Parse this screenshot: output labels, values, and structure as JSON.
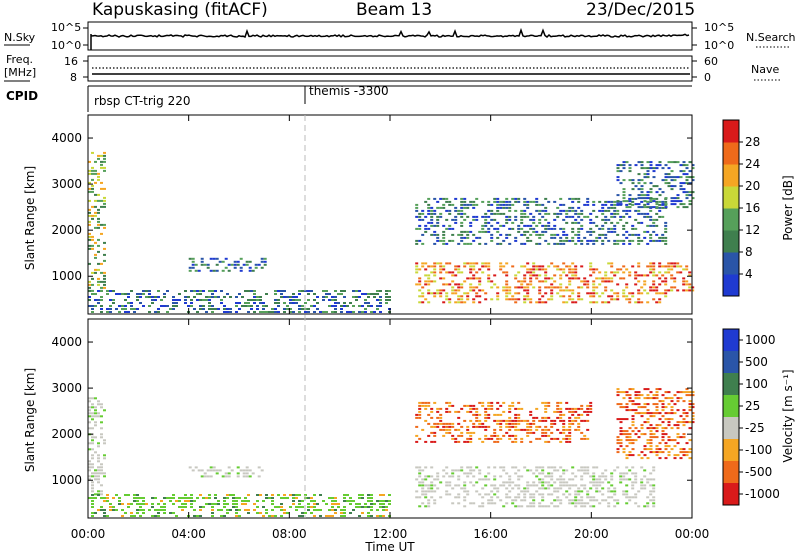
{
  "header": {
    "station": "Kapuskasing (fitACF)",
    "beam": "Beam 13",
    "date": "23/Dec/2015"
  },
  "noise_panel": {
    "left_label": "N.Sky",
    "right_label": "N.Search",
    "left_ticks": [
      "10^5",
      "10^0"
    ],
    "right_ticks": [
      "10^5",
      "10^0"
    ]
  },
  "freq_panel": {
    "left_label_top": "Freq.",
    "left_label_bottom": "[MHz]",
    "right_label": "Nave",
    "left_ticks": [
      "16",
      "8"
    ],
    "right_ticks": [
      "60",
      "0"
    ]
  },
  "cpid_panel": {
    "label": "CPID",
    "entries": [
      {
        "text": "rbsp CT-trig 220",
        "start": "00:00"
      },
      {
        "text": "themis -3300",
        "start": "08:45"
      }
    ]
  },
  "xaxis": {
    "label": "Time UT",
    "ticks": [
      "00:00",
      "04:00",
      "08:00",
      "12:00",
      "16:00",
      "20:00",
      "00:00"
    ]
  },
  "colors": {
    "power": [
      "#1f3ad1",
      "#2a55a8",
      "#3f7f4e",
      "#56a05a",
      "#c9d838",
      "#f5a623",
      "#ef6a1a",
      "#d91a1a"
    ],
    "velocity": [
      "#1f3ad1",
      "#2a55a8",
      "#3f7f4e",
      "#66cc33",
      "#c8c8c0",
      "#f5a623",
      "#ef6a1a",
      "#d91a1a"
    ],
    "noise_line": "#000000",
    "guide_line": "#bbbbbb"
  },
  "chart_data": [
    {
      "type": "heatmap",
      "panel": "power",
      "ylabel": "Slant Range [km]",
      "xlabel": "Time UT",
      "ylim": [
        180,
        4500
      ],
      "yticks": [
        1000,
        2000,
        3000,
        4000
      ],
      "xlim_hours": [
        0,
        24
      ],
      "colorbar": {
        "label": "Power [dB]",
        "range": [
          0,
          32
        ],
        "ticks": [
          "4",
          "8",
          "12",
          "16",
          "20",
          "24",
          "28"
        ]
      },
      "scatter_regions": [
        {
          "t0": 0.0,
          "t1": 0.6,
          "r0": 700,
          "r1": 3700,
          "level": "mid"
        },
        {
          "t0": 0.0,
          "t1": 12.0,
          "r0": 200,
          "r1": 700,
          "level": "low"
        },
        {
          "t0": 4.0,
          "t1": 7.0,
          "r0": 1100,
          "r1": 1400,
          "level": "low"
        },
        {
          "t0": 13.0,
          "t1": 24.0,
          "r0": 700,
          "r1": 1300,
          "level": "high"
        },
        {
          "t0": 13.0,
          "t1": 23.0,
          "r0": 400,
          "r1": 650,
          "level": "high"
        },
        {
          "t0": 13.0,
          "t1": 23.0,
          "r0": 1700,
          "r1": 2700,
          "level": "low"
        },
        {
          "t0": 21.0,
          "t1": 24.0,
          "r0": 2500,
          "r1": 3500,
          "level": "low"
        }
      ]
    },
    {
      "type": "heatmap",
      "panel": "velocity",
      "ylabel": "Slant Range [km]",
      "xlabel": "Time UT",
      "ylim": [
        180,
        4500
      ],
      "yticks": [
        1000,
        2000,
        3000,
        4000
      ],
      "xlim_hours": [
        0,
        24
      ],
      "colorbar": {
        "label": "Velocity [m s⁻¹]",
        "range": [
          -1500,
          1500
        ],
        "ticks": [
          "1000",
          "500",
          "100",
          "25",
          "-25",
          "-100",
          "-500",
          "-1000"
        ]
      },
      "scatter_regions": [
        {
          "t0": 0.0,
          "t1": 0.6,
          "r0": 700,
          "r1": 2800,
          "level": "neutral"
        },
        {
          "t0": 0.0,
          "t1": 12.0,
          "r0": 200,
          "r1": 700,
          "level": "green"
        },
        {
          "t0": 4.0,
          "t1": 7.0,
          "r0": 1100,
          "r1": 1300,
          "level": "neutral"
        },
        {
          "t0": 13.0,
          "t1": 22.5,
          "r0": 700,
          "r1": 1300,
          "level": "neutral"
        },
        {
          "t0": 13.0,
          "t1": 22.5,
          "r0": 400,
          "r1": 650,
          "level": "neutral"
        },
        {
          "t0": 13.0,
          "t1": 20.0,
          "r0": 1800,
          "r1": 2700,
          "level": "orange"
        },
        {
          "t0": 21.0,
          "t1": 24.0,
          "r0": 1500,
          "r1": 3000,
          "level": "orange"
        }
      ]
    }
  ]
}
